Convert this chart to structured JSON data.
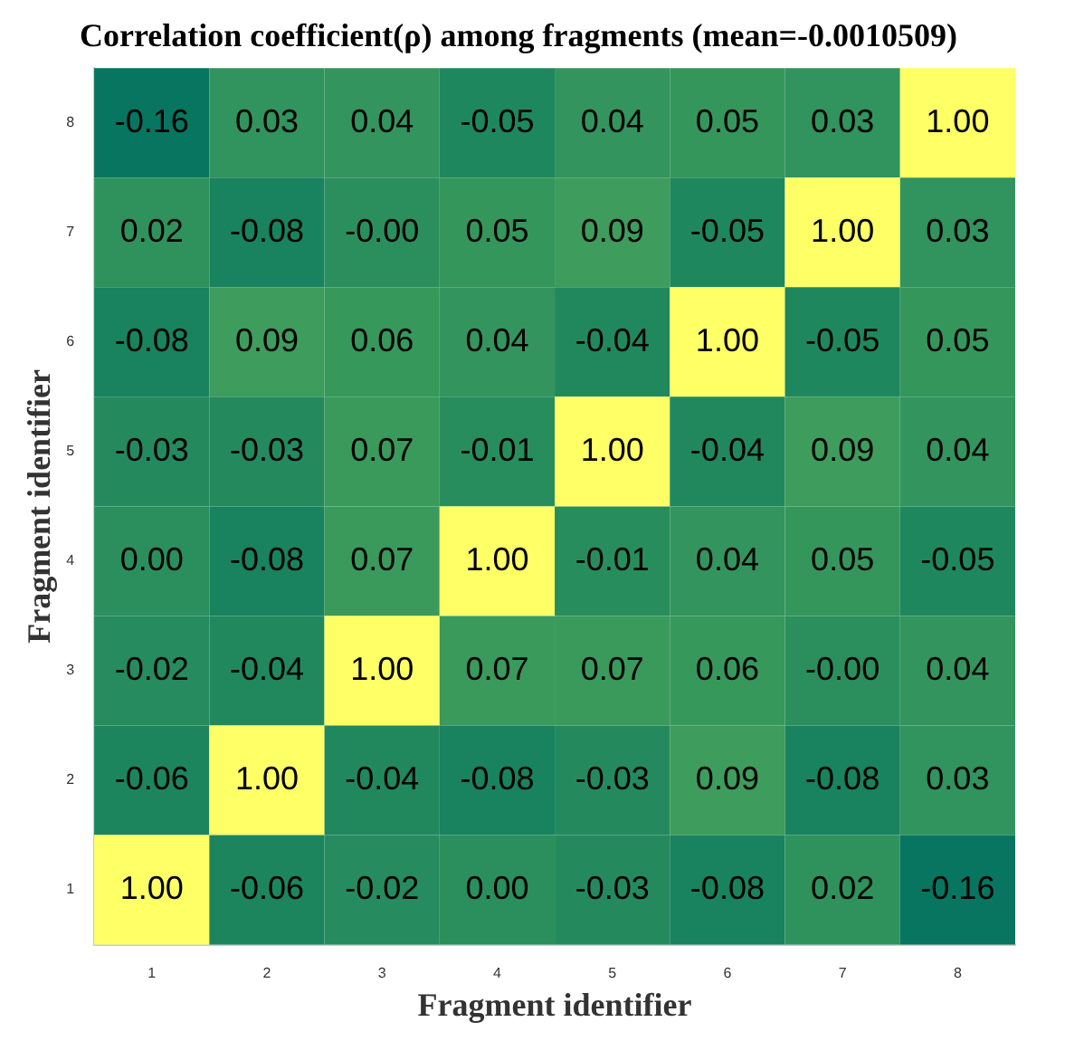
{
  "chart_data": {
    "type": "heatmap",
    "title": "Correlation coefficient(ρ) among fragments (mean=-0.0010509)",
    "xlabel": "Fragment identifier",
    "ylabel": "Fragment identifier",
    "categories": [
      "1",
      "2",
      "3",
      "4",
      "5",
      "6",
      "7",
      "8"
    ],
    "y_categories": [
      "8",
      "7",
      "6",
      "5",
      "4",
      "3",
      "2",
      "1"
    ],
    "cells": [
      [
        -0.16,
        0.03,
        0.04,
        -0.05,
        0.04,
        0.05,
        0.03,
        1.0
      ],
      [
        0.02,
        -0.08,
        0.0,
        0.05,
        0.09,
        -0.05,
        1.0,
        0.03
      ],
      [
        -0.08,
        0.09,
        0.06,
        0.04,
        -0.04,
        1.0,
        -0.05,
        0.05
      ],
      [
        -0.03,
        -0.03,
        0.07,
        -0.01,
        1.0,
        -0.04,
        0.09,
        0.04
      ],
      [
        0.0,
        -0.08,
        0.07,
        1.0,
        -0.01,
        0.04,
        0.05,
        -0.05
      ],
      [
        -0.02,
        -0.04,
        1.0,
        0.07,
        0.07,
        0.06,
        0.0,
        0.04
      ],
      [
        -0.06,
        1.0,
        -0.04,
        -0.08,
        -0.03,
        0.09,
        -0.08,
        0.03
      ],
      [
        1.0,
        -0.06,
        -0.02,
        0.0,
        -0.03,
        -0.08,
        0.02,
        -0.16
      ]
    ],
    "cell_labels": [
      [
        "-0.16",
        "0.03",
        "0.04",
        "-0.05",
        "0.04",
        "0.05",
        "0.03",
        "1.00"
      ],
      [
        "0.02",
        "-0.08",
        "-0.00",
        "0.05",
        "0.09",
        "-0.05",
        "1.00",
        "0.03"
      ],
      [
        "-0.08",
        "0.09",
        "0.06",
        "0.04",
        "-0.04",
        "1.00",
        "-0.05",
        "0.05"
      ],
      [
        "-0.03",
        "-0.03",
        "0.07",
        "-0.01",
        "1.00",
        "-0.04",
        "0.09",
        "0.04"
      ],
      [
        "0.00",
        "-0.08",
        "0.07",
        "1.00",
        "-0.01",
        "0.04",
        "0.05",
        "-0.05"
      ],
      [
        "-0.02",
        "-0.04",
        "1.00",
        "0.07",
        "0.07",
        "0.06",
        "-0.00",
        "0.04"
      ],
      [
        "-0.06",
        "1.00",
        "-0.04",
        "-0.08",
        "-0.03",
        "0.09",
        "-0.08",
        "0.03"
      ],
      [
        "1.00",
        "-0.06",
        "-0.02",
        "0.00",
        "-0.03",
        "-0.08",
        "0.02",
        "-0.16"
      ]
    ]
  }
}
